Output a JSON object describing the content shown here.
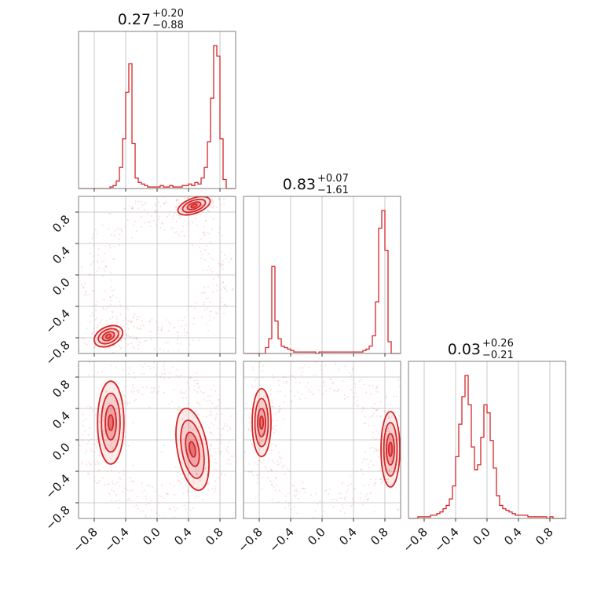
{
  "chart_data": {
    "type": "corner",
    "color": "#d62728",
    "grid": true,
    "ticks": [
      -0.8,
      -0.4,
      0.0,
      0.4,
      0.8
    ],
    "tick_labels": [
      "−0.8",
      "−0.4",
      "0.0",
      "0.4",
      "0.8"
    ],
    "xlim": [
      -1.0,
      1.0
    ],
    "ylim": [
      -1.0,
      1.0
    ],
    "diagonal": [
      {
        "param_index": 0,
        "title": {
          "value": "0.27",
          "plus": "+0.20",
          "minus": "−0.88"
        },
        "bin_edges": [
          -1.0,
          0.95
        ],
        "histogram": [
          0,
          0,
          0,
          0,
          0,
          0,
          0,
          0,
          0,
          0,
          0.01,
          0.02,
          0.05,
          0.14,
          0.33,
          0.64,
          0.83,
          0.3,
          0.07,
          0.04,
          0.03,
          0.02,
          0.01,
          0.01,
          0.01,
          0.01,
          0.02,
          0.01,
          0.01,
          0.02,
          0.01,
          0.01,
          0.01,
          0.02,
          0.02,
          0.03,
          0.02,
          0.04,
          0.03,
          0.07,
          0.14,
          0.31,
          0.6,
          0.95,
          0.88,
          0.33,
          0.06,
          0.0,
          0.0,
          0.0
        ]
      },
      {
        "param_index": 1,
        "title": {
          "value": "0.83",
          "plus": "+0.07",
          "minus": "−1.61"
        },
        "histogram": [
          0,
          0,
          0,
          0,
          0,
          0,
          0,
          0.04,
          0.1,
          0.59,
          0.22,
          0.1,
          0.05,
          0.04,
          0.03,
          0.02,
          0.01,
          0.01,
          0.01,
          0.01,
          0.01,
          0.01,
          0.01,
          0.0,
          0.01,
          0.01,
          0.01,
          0.01,
          0.01,
          0.01,
          0.01,
          0.01,
          0.01,
          0.01,
          0.01,
          0.01,
          0.01,
          0.01,
          0.02,
          0.03,
          0.05,
          0.12,
          0.35,
          0.85,
          0.97,
          0.7,
          0.08,
          0.0,
          0.0,
          0.0
        ]
      },
      {
        "param_index": 2,
        "title": {
          "value": "0.03",
          "plus": "+0.26",
          "minus": "−0.21"
        },
        "histogram": [
          0,
          0,
          0,
          0.01,
          0.01,
          0.01,
          0.01,
          0.02,
          0.02,
          0.03,
          0.04,
          0.06,
          0.08,
          0.12,
          0.2,
          0.38,
          0.58,
          0.75,
          0.88,
          0.7,
          0.44,
          0.3,
          0.33,
          0.5,
          0.7,
          0.65,
          0.48,
          0.31,
          0.14,
          0.08,
          0.06,
          0.05,
          0.04,
          0.03,
          0.02,
          0.02,
          0.02,
          0.02,
          0.01,
          0.01,
          0.01,
          0.01,
          0.01,
          0.01,
          0.0,
          0.01,
          0.0,
          0.0,
          0.0,
          0.0
        ]
      }
    ],
    "contour_panels": [
      {
        "row": 1,
        "col": 0,
        "modes": [
          {
            "cx": 0.47,
            "cy": 0.88,
            "sx": 0.09,
            "sy": 0.04,
            "angle": -20
          },
          {
            "cx": -0.62,
            "cy": -0.78,
            "sx": 0.08,
            "sy": 0.05,
            "angle": -25
          }
        ]
      },
      {
        "row": 2,
        "col": 0,
        "modes": [
          {
            "cx": -0.59,
            "cy": 0.22,
            "sx": 0.07,
            "sy": 0.22,
            "angle": 0
          },
          {
            "cx": 0.45,
            "cy": -0.12,
            "sx": 0.08,
            "sy": 0.22,
            "angle": -10
          }
        ]
      },
      {
        "row": 2,
        "col": 1,
        "modes": [
          {
            "cx": -0.77,
            "cy": 0.22,
            "sx": 0.05,
            "sy": 0.18,
            "angle": 0
          },
          {
            "cx": 0.87,
            "cy": -0.12,
            "sx": 0.05,
            "sy": 0.2,
            "angle": 0
          }
        ]
      }
    ]
  }
}
